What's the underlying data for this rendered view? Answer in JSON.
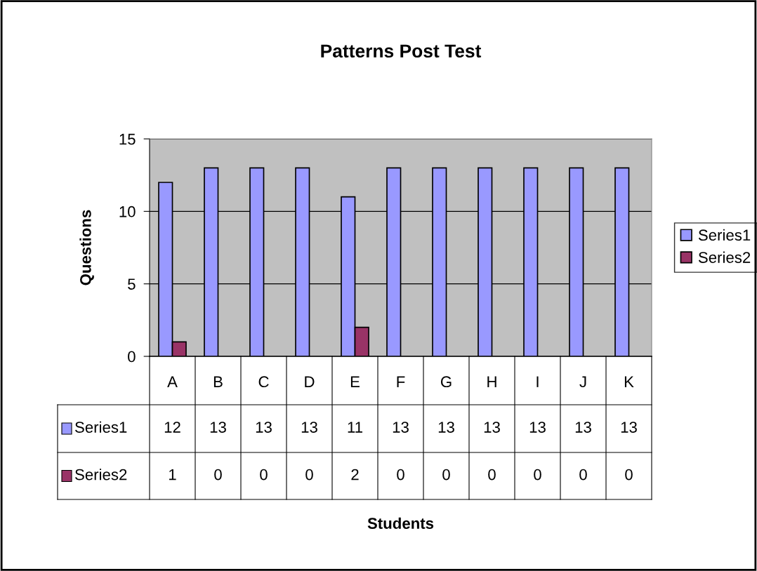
{
  "chart_data": {
    "type": "bar",
    "title": "Patterns Post Test",
    "annotations": [
      "Students"
    ],
    "ylabel": "Questions",
    "categories": [
      "A",
      "B",
      "C",
      "D",
      "E",
      "F",
      "G",
      "H",
      "I",
      "J",
      "K"
    ],
    "series": [
      {
        "name": "Series1",
        "color": "#9999ff",
        "values": [
          12,
          13,
          13,
          13,
          11,
          13,
          13,
          13,
          13,
          13,
          13
        ]
      },
      {
        "name": "Series2",
        "color": "#993366",
        "values": [
          1,
          0,
          0,
          0,
          2,
          0,
          0,
          0,
          0,
          0,
          0
        ]
      }
    ],
    "ylim": [
      0,
      15
    ],
    "yticks": [
      0,
      5,
      10,
      15
    ],
    "grid": "y",
    "legend": "right",
    "data_labels": true
  }
}
